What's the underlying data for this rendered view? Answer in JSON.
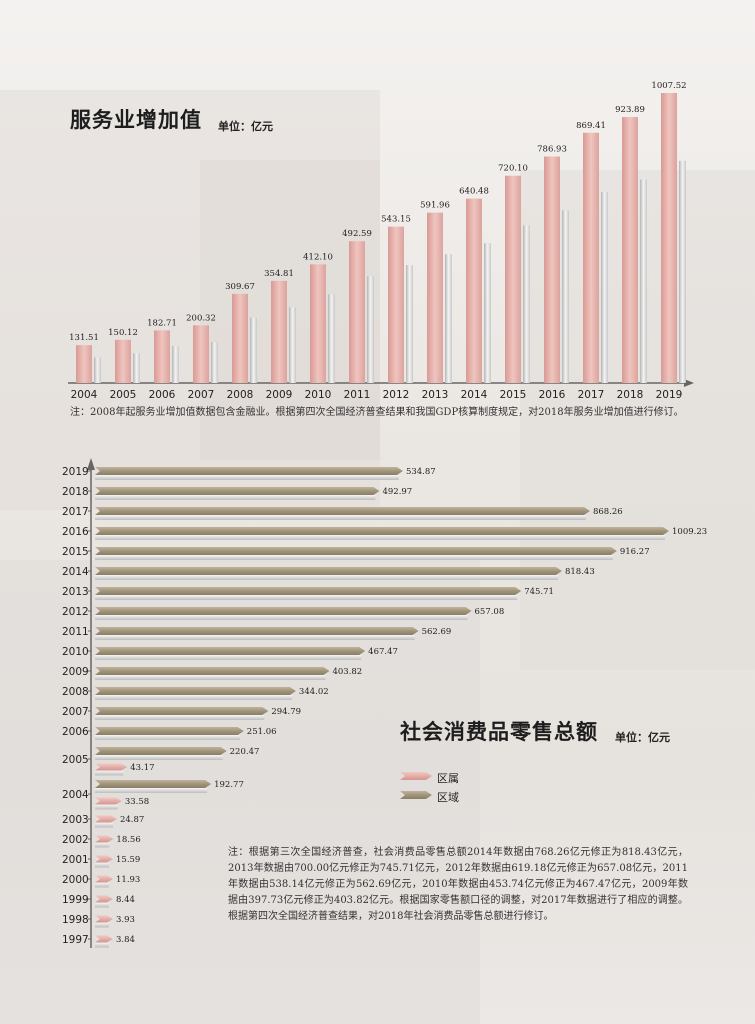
{
  "chart_data": [
    {
      "type": "bar",
      "title": "服务业增加值",
      "unit": "单位：亿元",
      "categories": [
        "2004",
        "2005",
        "2006",
        "2007",
        "2008",
        "2009",
        "2010",
        "2011",
        "2012",
        "2013",
        "2014",
        "2015",
        "2016",
        "2017",
        "2018",
        "2019"
      ],
      "values": [
        131.51,
        150.12,
        182.71,
        200.32,
        309.67,
        354.81,
        412.1,
        492.59,
        543.15,
        591.96,
        640.48,
        720.1,
        786.93,
        869.41,
        923.89,
        1007.52
      ],
      "labels": [
        "131.51",
        "150.12",
        "182.71",
        "200.32",
        "309.67",
        "354.81",
        "412.10",
        "492.59",
        "543.15",
        "591.96",
        "640.48",
        "720.10",
        "786.93",
        "869.41",
        "923.89",
        "1007.52"
      ],
      "note": "注：2008年起服务业增加值数据包含金融业。根据第四次全国经济普查结果和我国GDP核算制度规定，对2018年服务业增加值进行修订。",
      "colors": {
        "bar": "#e4aea9"
      }
    },
    {
      "type": "bar",
      "orientation": "horizontal",
      "title": "社会消费品零售总额",
      "unit": "单位：亿元",
      "categories": [
        "2019",
        "2018",
        "2017",
        "2016",
        "2015",
        "2014",
        "2013",
        "2012",
        "2011",
        "2010",
        "2009",
        "2008",
        "2007",
        "2006",
        "2005",
        "2004",
        "2003",
        "2002",
        "2001",
        "2000",
        "1999",
        "1998",
        "1997"
      ],
      "series": [
        {
          "name": "区属",
          "values": [
            null,
            null,
            null,
            null,
            null,
            null,
            null,
            null,
            null,
            null,
            null,
            null,
            null,
            null,
            43.17,
            33.58,
            24.87,
            18.56,
            15.59,
            11.93,
            8.44,
            3.93,
            3.84
          ],
          "labels": [
            "",
            "",
            "",
            "",
            "",
            "",
            "",
            "",
            "",
            "",
            "",
            "",
            "",
            "",
            "43.17",
            "33.58",
            "24.87",
            "18.56",
            "15.59",
            "11.93",
            "8.44",
            "3.93",
            "3.84"
          ]
        },
        {
          "name": "区域",
          "values": [
            534.87,
            492.97,
            868.26,
            1009.23,
            916.27,
            818.43,
            745.71,
            657.08,
            562.69,
            467.47,
            403.82,
            344.02,
            294.79,
            251.06,
            220.47,
            192.77,
            null,
            null,
            null,
            null,
            null,
            null,
            null
          ],
          "labels": [
            "534.87",
            "492.97",
            "868.26",
            "1009.23",
            "916.27",
            "818.43",
            "745.71",
            "657.08",
            "562.69",
            "467.47",
            "403.82",
            "344.02",
            "294.79",
            "251.06",
            "220.47",
            "192.77",
            "",
            "",
            "",
            "",
            "",
            "",
            ""
          ]
        }
      ],
      "note": "注：根据第三次全国经济普查，社会消费品零售总额2014年数据由768.26亿元修正为818.43亿元，2013年数据由700.00亿元修正为745.71亿元，2012年数据由619.18亿元修正为657.08亿元，2011年数据由538.14亿元修正为562.69亿元，2010年数据由453.74亿元修正为467.47亿元，2009年数据由397.73亿元修正为403.82亿元。根据国家零售额口径的调整，对2017年数据进行了相应的调整。根据第四次全国经济普查结果，对2018年社会消费品零售总额进行修订。",
      "colors": {
        "区属": "#e4aea9",
        "区域": "#a89c82"
      }
    }
  ]
}
